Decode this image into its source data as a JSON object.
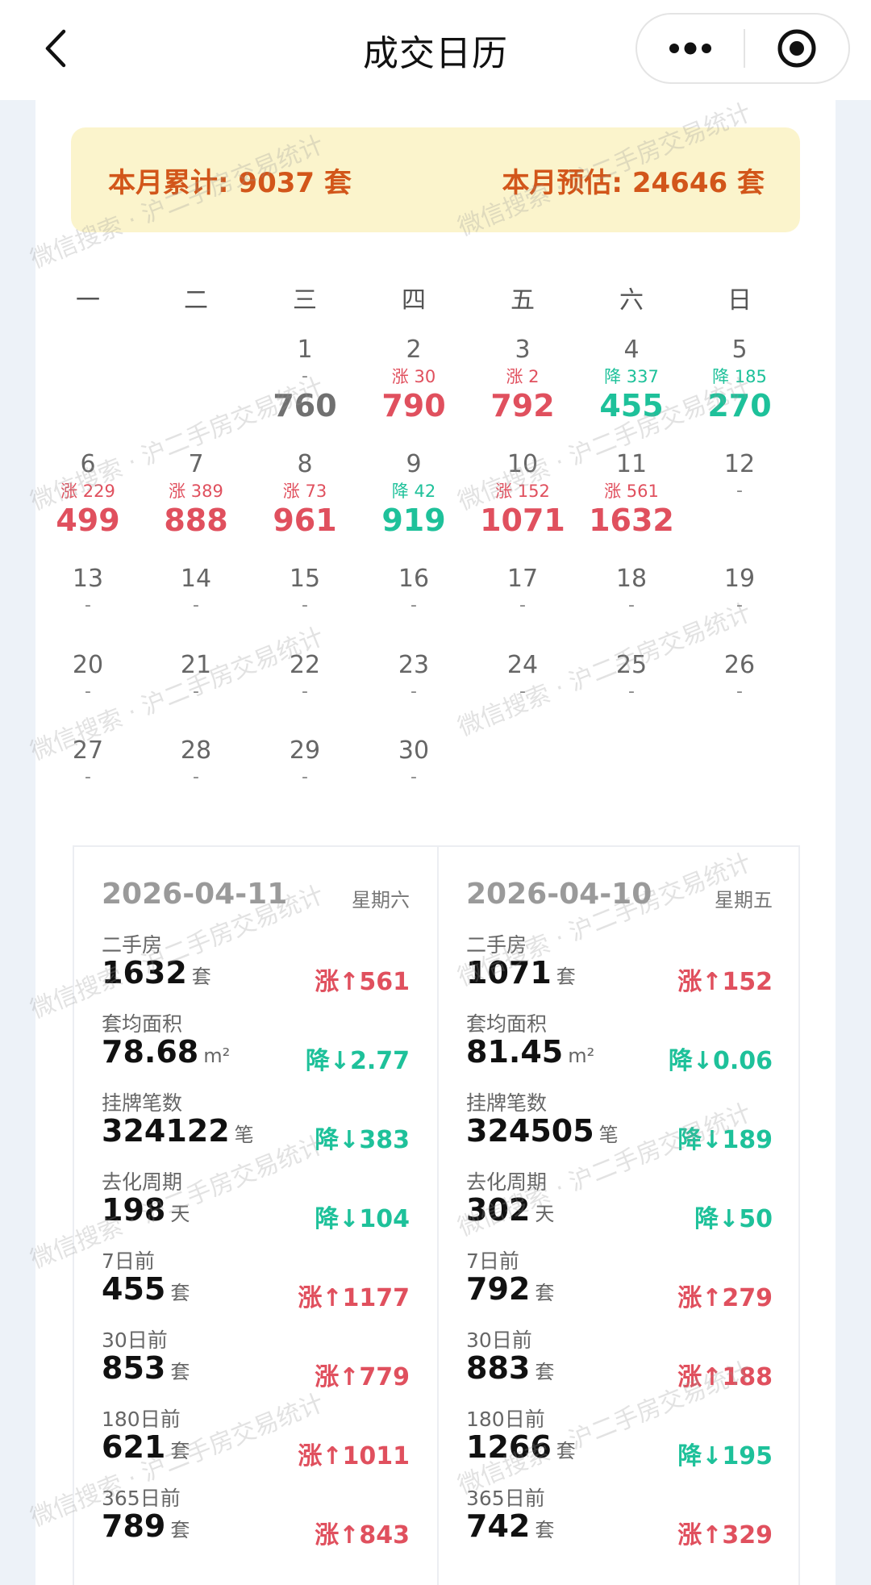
{
  "nav": {
    "title": "成交日历",
    "back_icon": "chevron-left-icon",
    "more_icon": "more-dots-icon",
    "target_icon": "target-icon"
  },
  "summary": {
    "month_total": "本月累计: 9037 套",
    "month_estimate": "本月预估: 24646 套"
  },
  "weekdays": [
    "一",
    "二",
    "三",
    "四",
    "五",
    "六",
    "日"
  ],
  "calendar": [
    {
      "day": "1",
      "change": "-",
      "value": "760",
      "dir": "gray"
    },
    {
      "day": "2",
      "change": "涨 30",
      "value": "790",
      "dir": "up"
    },
    {
      "day": "3",
      "change": "涨 2",
      "value": "792",
      "dir": "up"
    },
    {
      "day": "4",
      "change": "降 337",
      "value": "455",
      "dir": "down"
    },
    {
      "day": "5",
      "change": "降 185",
      "value": "270",
      "dir": "down"
    },
    {
      "day": "6",
      "change": "涨 229",
      "value": "499",
      "dir": "up"
    },
    {
      "day": "7",
      "change": "涨 389",
      "value": "888",
      "dir": "up"
    },
    {
      "day": "8",
      "change": "涨 73",
      "value": "961",
      "dir": "up"
    },
    {
      "day": "9",
      "change": "降 42",
      "value": "919",
      "dir": "down"
    },
    {
      "day": "10",
      "change": "涨 152",
      "value": "1071",
      "dir": "up"
    },
    {
      "day": "11",
      "change": "涨 561",
      "value": "1632",
      "dir": "up"
    },
    {
      "day": "12",
      "change": "-",
      "value": "",
      "dir": "gray"
    },
    {
      "day": "13",
      "change": "-",
      "value": "",
      "dir": "gray"
    },
    {
      "day": "14",
      "change": "-",
      "value": "",
      "dir": "gray"
    },
    {
      "day": "15",
      "change": "-",
      "value": "",
      "dir": "gray"
    },
    {
      "day": "16",
      "change": "-",
      "value": "",
      "dir": "gray"
    },
    {
      "day": "17",
      "change": "-",
      "value": "",
      "dir": "gray"
    },
    {
      "day": "18",
      "change": "-",
      "value": "",
      "dir": "gray"
    },
    {
      "day": "19",
      "change": "-",
      "value": "",
      "dir": "gray"
    },
    {
      "day": "20",
      "change": "-",
      "value": "",
      "dir": "gray"
    },
    {
      "day": "21",
      "change": "-",
      "value": "",
      "dir": "gray"
    },
    {
      "day": "22",
      "change": "-",
      "value": "",
      "dir": "gray"
    },
    {
      "day": "23",
      "change": "-",
      "value": "",
      "dir": "gray"
    },
    {
      "day": "24",
      "change": "-",
      "value": "",
      "dir": "gray"
    },
    {
      "day": "25",
      "change": "-",
      "value": "",
      "dir": "gray"
    },
    {
      "day": "26",
      "change": "-",
      "value": "",
      "dir": "gray"
    },
    {
      "day": "27",
      "change": "-",
      "value": "",
      "dir": "gray"
    },
    {
      "day": "28",
      "change": "-",
      "value": "",
      "dir": "gray"
    },
    {
      "day": "29",
      "change": "-",
      "value": "",
      "dir": "gray"
    },
    {
      "day": "30",
      "change": "-",
      "value": "",
      "dir": "gray"
    }
  ],
  "cards": [
    {
      "date": "2026-04-11",
      "weekday": "星期六",
      "metrics": [
        {
          "label": "二手房",
          "value": "1632",
          "unit": "套",
          "change": "涨↑561",
          "dir": "up"
        },
        {
          "label": "套均面积",
          "value": "78.68",
          "unit": "m²",
          "change": "降↓2.77",
          "dir": "down"
        },
        {
          "label": "挂牌笔数",
          "value": "324122",
          "unit": "笔",
          "change": "降↓383",
          "dir": "down"
        },
        {
          "label": "去化周期",
          "value": "198",
          "unit": "天",
          "change": "降↓104",
          "dir": "down"
        },
        {
          "label": "7日前",
          "value": "455",
          "unit": "套",
          "change": "涨↑1177",
          "dir": "up"
        },
        {
          "label": "30日前",
          "value": "853",
          "unit": "套",
          "change": "涨↑779",
          "dir": "up"
        },
        {
          "label": "180日前",
          "value": "621",
          "unit": "套",
          "change": "涨↑1011",
          "dir": "up"
        },
        {
          "label": "365日前",
          "value": "789",
          "unit": "套",
          "change": "涨↑843",
          "dir": "up"
        }
      ]
    },
    {
      "date": "2026-04-10",
      "weekday": "星期五",
      "metrics": [
        {
          "label": "二手房",
          "value": "1071",
          "unit": "套",
          "change": "涨↑152",
          "dir": "up"
        },
        {
          "label": "套均面积",
          "value": "81.45",
          "unit": "m²",
          "change": "降↓0.06",
          "dir": "down"
        },
        {
          "label": "挂牌笔数",
          "value": "324505",
          "unit": "笔",
          "change": "降↓189",
          "dir": "down"
        },
        {
          "label": "去化周期",
          "value": "302",
          "unit": "天",
          "change": "降↓50",
          "dir": "down"
        },
        {
          "label": "7日前",
          "value": "792",
          "unit": "套",
          "change": "涨↑279",
          "dir": "up"
        },
        {
          "label": "30日前",
          "value": "883",
          "unit": "套",
          "change": "涨↑188",
          "dir": "up"
        },
        {
          "label": "180日前",
          "value": "1266",
          "unit": "套",
          "change": "降↓195",
          "dir": "down"
        },
        {
          "label": "365日前",
          "value": "742",
          "unit": "套",
          "change": "涨↑329",
          "dir": "up"
        }
      ]
    }
  ],
  "watermark": "微信搜索 · 沪二手房交易统计",
  "colors": {
    "up": "#e0505e",
    "down": "#1ec19a",
    "summary_text": "#d2561a",
    "summary_bg": "#fbf4cc"
  }
}
